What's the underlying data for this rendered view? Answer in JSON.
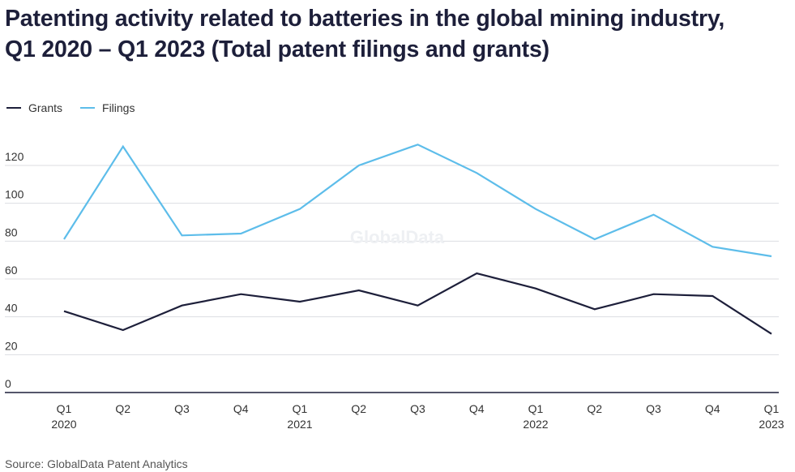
{
  "title_line1": "Patenting activity related to batteries in the global mining industry,",
  "title_line2": "Q1 2020 – Q1 2023 (Total patent filings and grants)",
  "source": "Source: GlobalData Patent Analytics",
  "watermark": "GlobalData",
  "legend": [
    {
      "name": "Grants",
      "color": "#1d1f3a"
    },
    {
      "name": "Filings",
      "color": "#5dbdea"
    }
  ],
  "chart_data": {
    "type": "line",
    "x_labels": [
      [
        "Q1",
        "2020"
      ],
      [
        "Q2",
        ""
      ],
      [
        "Q3",
        ""
      ],
      [
        "Q4",
        ""
      ],
      [
        "Q1",
        "2021"
      ],
      [
        "Q2",
        ""
      ],
      [
        "Q3",
        ""
      ],
      [
        "Q4",
        ""
      ],
      [
        "Q1",
        "2022"
      ],
      [
        "Q2",
        ""
      ],
      [
        "Q3",
        ""
      ],
      [
        "Q4",
        ""
      ],
      [
        "Q1",
        "2023"
      ]
    ],
    "y_ticks": [
      0,
      20,
      40,
      60,
      80,
      100,
      120
    ],
    "grid": true,
    "legend_position": "top-left",
    "series": [
      {
        "name": "Grants",
        "color": "#1d1f3a",
        "values": [
          43,
          33,
          46,
          52,
          48,
          54,
          46,
          63,
          55,
          44,
          52,
          51,
          31
        ]
      },
      {
        "name": "Filings",
        "color": "#5dbdea",
        "values": [
          81,
          130,
          83,
          84,
          97,
          120,
          131,
          116,
          97,
          81,
          94,
          77,
          72
        ]
      }
    ]
  }
}
